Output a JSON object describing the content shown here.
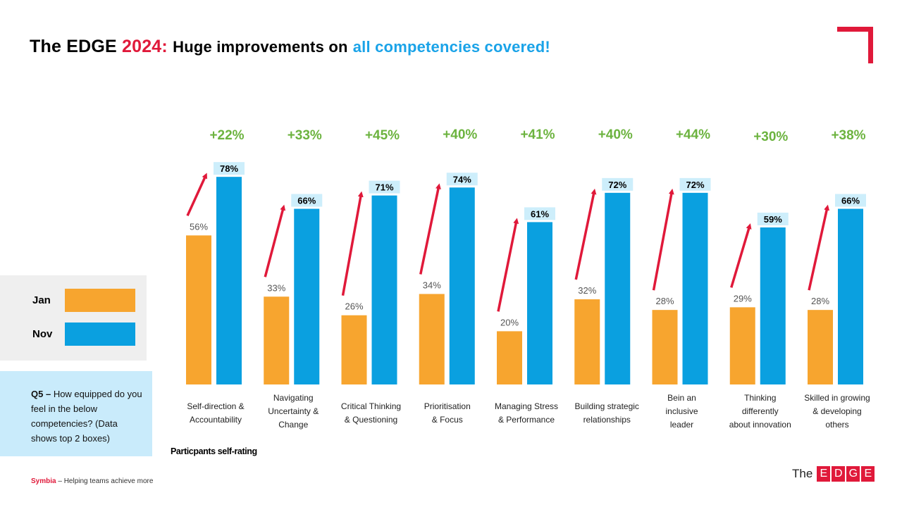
{
  "title": {
    "edge": "The EDGE",
    "year": "2024:",
    "headline": "Huge improvements on",
    "highlight": "all competencies covered!"
  },
  "colors": {
    "jan": "#f7a52f",
    "nov": "#0aa0e0",
    "nov_label_bg": "#cdeefb",
    "arrow": "#e0193a",
    "gain": "#6cb33f",
    "title_red": "#e0193a",
    "title_blue": "#1aa3e8"
  },
  "legend": {
    "jan_label": "Jan",
    "nov_label": "Nov"
  },
  "question": {
    "prefix": "Q5 –",
    "text": "How equipped do you feel in the below competencies? (Data shows top 2 boxes)"
  },
  "note": "Particpants self-rating",
  "footer": {
    "brand": "Symbia",
    "tagline": "– Helping teams achieve more"
  },
  "logo": {
    "word": "The",
    "letters": [
      "E",
      "D",
      "G",
      "E"
    ]
  },
  "chart_data": {
    "type": "bar",
    "title": "The EDGE 2024: Huge improvements on all competencies covered!",
    "ylim": [
      0,
      100
    ],
    "unit": "%",
    "categories": [
      [
        "Self-direction &",
        "Accountability"
      ],
      [
        "Navigating",
        "Uncertainty &",
        "Change"
      ],
      [
        "Critical Thinking",
        "& Questioning"
      ],
      [
        "Prioritisation",
        "&  Focus"
      ],
      [
        "Managing Stress",
        "& Performance"
      ],
      [
        "Building strategic",
        "relationships"
      ],
      [
        "Bein an",
        "inclusive",
        "leader"
      ],
      [
        "Thinking",
        "differently",
        "about innovation"
      ],
      [
        "Skilled in growing",
        "& developing",
        "others"
      ]
    ],
    "series": [
      {
        "name": "Jan",
        "values": [
          56,
          33,
          26,
          34,
          20,
          32,
          28,
          29,
          28
        ]
      },
      {
        "name": "Nov",
        "values": [
          78,
          66,
          71,
          74,
          61,
          72,
          72,
          59,
          66
        ]
      }
    ],
    "gains": [
      "+22%",
      "+33%",
      "+45%",
      "+40%",
      "+41%",
      "+40%",
      "+44%",
      "+30%",
      "+38%"
    ]
  }
}
